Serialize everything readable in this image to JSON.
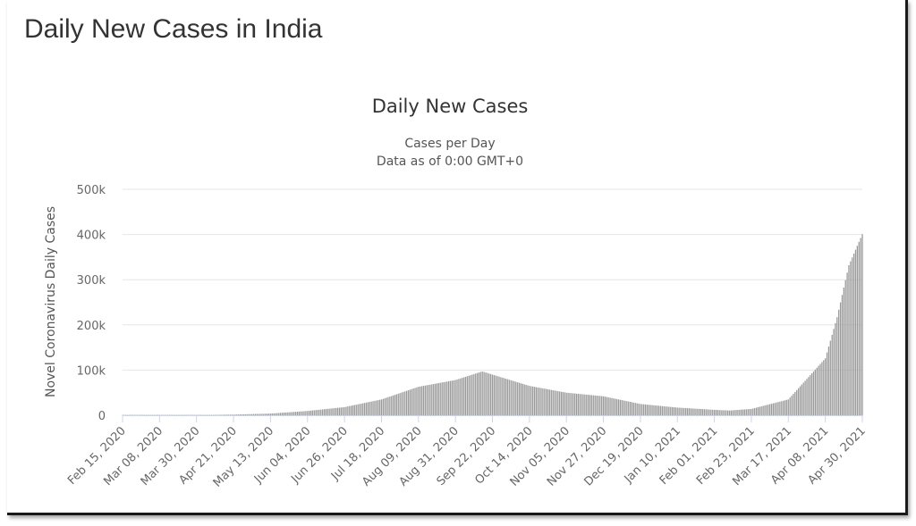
{
  "page": {
    "title": "Daily New Cases in India"
  },
  "chart_data": {
    "type": "bar",
    "title": "Daily New Cases",
    "subtitle": "Cases per Day",
    "subtitle2": "Data as of 0:00 GMT+0",
    "ylabel": "Novel Coronavirus Daily Cases",
    "xlabel": "",
    "ylim": [
      0,
      500000
    ],
    "y_ticks": [
      0,
      100000,
      200000,
      300000,
      400000,
      500000
    ],
    "y_tick_labels": [
      "0",
      "100k",
      "200k",
      "300k",
      "400k",
      "500k"
    ],
    "x_range": [
      "2020-02-15",
      "2021-04-30"
    ],
    "x_ticks": [
      "2020-02-15",
      "2020-03-08",
      "2020-03-30",
      "2020-04-21",
      "2020-05-13",
      "2020-06-04",
      "2020-06-26",
      "2020-07-18",
      "2020-08-09",
      "2020-08-31",
      "2020-09-22",
      "2020-10-14",
      "2020-11-05",
      "2020-11-27",
      "2020-12-19",
      "2021-01-10",
      "2021-02-01",
      "2021-02-23",
      "2021-03-17",
      "2021-04-08",
      "2021-04-30"
    ],
    "x_tick_labels": [
      "Feb 15, 2020",
      "Mar 08, 2020",
      "Mar 30, 2020",
      "Apr 21, 2020",
      "May 13, 2020",
      "Jun 04, 2020",
      "Jun 26, 2020",
      "Jul 18, 2020",
      "Aug 09, 2020",
      "Aug 31, 2020",
      "Sep 22, 2020",
      "Oct 14, 2020",
      "Nov 05, 2020",
      "Nov 27, 2020",
      "Dec 19, 2020",
      "Jan 10, 2021",
      "Feb 01, 2021",
      "Feb 23, 2021",
      "Mar 17, 2021",
      "Apr 08, 2021",
      "Apr 30, 2021"
    ],
    "grid": true,
    "bar_color": "#999999",
    "series": [
      {
        "x": [
          "2020-02-15",
          "2020-03-08",
          "2020-03-30",
          "2020-04-21",
          "2020-05-13",
          "2020-06-04",
          "2020-06-26",
          "2020-07-18",
          "2020-08-09",
          "2020-08-31",
          "2020-09-16",
          "2020-09-22",
          "2020-10-14",
          "2020-11-05",
          "2020-11-27",
          "2020-12-19",
          "2021-01-10",
          "2021-02-01",
          "2021-02-10",
          "2021-02-23",
          "2021-03-17",
          "2021-04-08",
          "2021-04-15",
          "2021-04-22",
          "2021-04-30"
        ],
        "values": [
          0,
          20,
          200,
          1500,
          3700,
          9500,
          18000,
          35000,
          63000,
          78000,
          97000,
          90000,
          65000,
          50000,
          42000,
          25000,
          17000,
          12000,
          10500,
          14000,
          35000,
          126000,
          217000,
          332000,
          401000
        ]
      }
    ]
  }
}
